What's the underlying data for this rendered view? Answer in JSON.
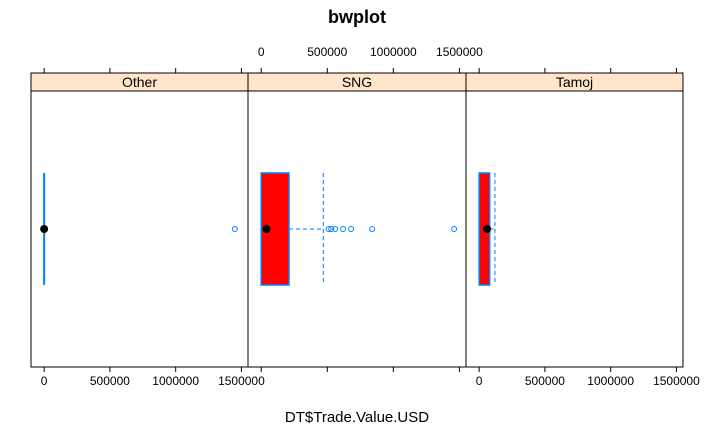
{
  "chart_data": {
    "type": "boxplot",
    "title": "bwplot",
    "xlabel": "DT$Trade.Value.USD",
    "ylabel": "",
    "x_ticks": [
      "0",
      "500000",
      "1000000",
      "1500000"
    ],
    "x_tick_values": [
      0,
      500000,
      1000000,
      1500000
    ],
    "xlim": [
      -100000,
      1550000
    ],
    "panels": [
      {
        "name": "Other",
        "min": 0,
        "q1": 0,
        "median": 0,
        "q3": 0,
        "max": 0,
        "outliers": [
          1450000
        ]
      },
      {
        "name": "SNG",
        "min": 0,
        "q1": 0,
        "median": 40000,
        "q3": 210000,
        "max": 470000,
        "outliers": [
          510000,
          530000,
          560000,
          620000,
          680000,
          840000,
          1460000
        ]
      },
      {
        "name": "Tamoj",
        "min": 0,
        "q1": 0,
        "median": 60000,
        "q3": 80000,
        "max": 120000,
        "outliers": []
      }
    ],
    "colors": {
      "strip_bg": "#ffe5cc",
      "box_fill": "#ff0000",
      "box_border": "#0080ff",
      "whisker": "#0080ff",
      "outlier": "#0080ff",
      "median_dot": "#000000"
    }
  }
}
